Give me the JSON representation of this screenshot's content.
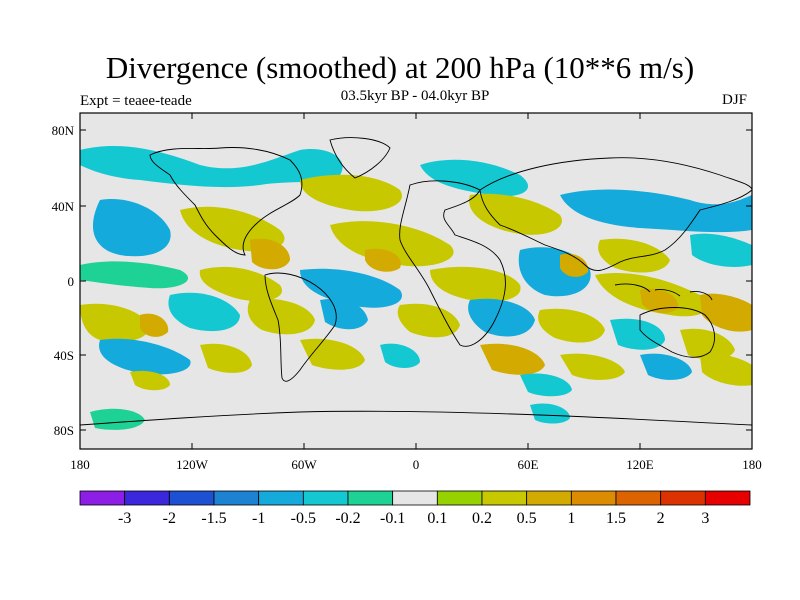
{
  "title": "Divergence (smoothed) at 200 hPa (10**6 m/s)",
  "subtitle": "03.5kyr BP - 04.0kyr BP",
  "expt_label": "Expt = teaee-teade",
  "season": "DJF",
  "map": {
    "lat_labels": [
      "80N",
      "40N",
      "0",
      "40S",
      "80S"
    ],
    "lon_labels": [
      "180",
      "120W",
      "60W",
      "0",
      "60E",
      "120E",
      "180"
    ],
    "background_color": "#e6e6e6"
  },
  "colorbar": {
    "colors": [
      "#8c1ee6",
      "#3c28dc",
      "#1e50d2",
      "#1e82d2",
      "#14aadc",
      "#14c8d2",
      "#1ed296",
      "#e6e6e6",
      "#96d200",
      "#c8c800",
      "#d2aa00",
      "#dc8c00",
      "#dc6400",
      "#dc3200",
      "#e60000"
    ],
    "labels": [
      "-3",
      "-2",
      "-1.5",
      "-1",
      "-0.5",
      "-0.2",
      "-0.1",
      "0.1",
      "0.2",
      "0.5",
      "1",
      "1.5",
      "2",
      "3"
    ]
  }
}
